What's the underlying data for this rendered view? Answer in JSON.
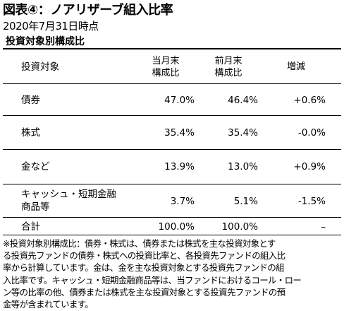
{
  "title": "図表④：ノアリザーブ組入比率",
  "date": "2020年7月31日時点",
  "section_title": "投資対象別構成比",
  "table": {
    "headers": [
      "投資対象",
      "当月末\n構成比",
      "前月末\n構成比",
      "増減"
    ],
    "rows": [
      {
        "category": "債券",
        "current": "47.0%",
        "previous": "46.4%",
        "change": "+0.6%"
      },
      {
        "category": "株式",
        "current": "35.4%",
        "previous": "35.4%",
        "change": "-0.0%"
      },
      {
        "category": "金など",
        "current": "13.9%",
        "previous": "13.0%",
        "change": "+0.9%"
      },
      {
        "category": "キャッシュ・短期金融\n商品等",
        "current": "3.7%",
        "previous": "5.1%",
        "change": "-1.5%"
      }
    ],
    "total": {
      "category": "合計",
      "current": "100.0%",
      "previous": "100.0%",
      "change": "–"
    }
  },
  "note_lines": [
    "※投資対象別構成比：債券・株式は、債券または株式を主な投資対象とす",
    "る投資先ファンドの債券・株式への投資比率と、各投資先ファンドの組入比",
    "率から計算しています。金は、金を主な投資対象とする投資先ファンドの組",
    "入比率です。キャッシュ・短期金融商品等は、当ファンドにおけるコール・ロー",
    "ン等の比率の他、債券または株式を主な投資対象とする投資先ファンドの預",
    "金等が含まれています。"
  ]
}
